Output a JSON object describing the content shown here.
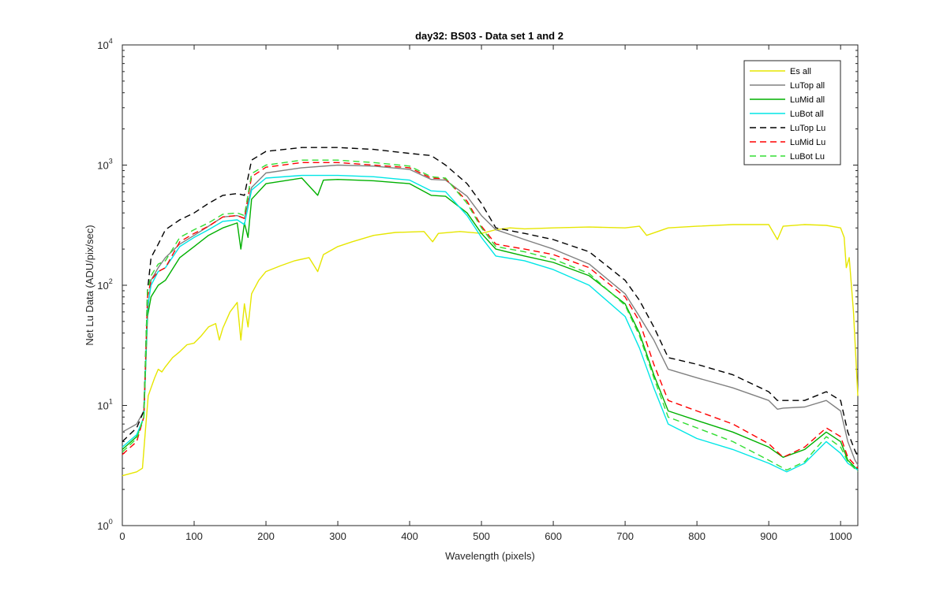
{
  "chart_data": {
    "type": "line",
    "title": "day32: BS03 - Data set 1 and 2",
    "xlabel": "Wavelength (pixels)",
    "ylabel": "Net Lu Data (ADU/pix/sec)",
    "xlim": [
      0,
      1024
    ],
    "ylim": [
      1,
      10000
    ],
    "yscale": "log",
    "grid": false,
    "legend_position": "top-right",
    "xticks": [
      0,
      100,
      200,
      300,
      400,
      500,
      600,
      700,
      800,
      900,
      1000
    ],
    "xtick_labels": [
      "0",
      "100",
      "200",
      "300",
      "400",
      "500",
      "600",
      "700",
      "800",
      "900",
      "1000"
    ],
    "yticks": [
      {
        "value": 1,
        "base": "10",
        "exp": "0"
      },
      {
        "value": 10,
        "base": "10",
        "exp": "1"
      },
      {
        "value": 100,
        "base": "10",
        "exp": "2"
      },
      {
        "value": 1000,
        "base": "10",
        "exp": "3"
      },
      {
        "value": 10000,
        "base": "10",
        "exp": "4"
      }
    ],
    "series": [
      {
        "name": "Es  all",
        "color": "#e6e600",
        "dash": "solid",
        "x": [
          0,
          20,
          28,
          32,
          36,
          40,
          45,
          50,
          55,
          60,
          70,
          80,
          90,
          100,
          110,
          120,
          130,
          135,
          140,
          150,
          160,
          165,
          170,
          175,
          180,
          190,
          200,
          220,
          240,
          260,
          272,
          280,
          300,
          320,
          350,
          380,
          420,
          432,
          440,
          470,
          500,
          520,
          540,
          560,
          600,
          650,
          700,
          720,
          730,
          760,
          800,
          850,
          900,
          912,
          920,
          950,
          980,
          1000,
          1005,
          1008,
          1012,
          1018,
          1024
        ],
        "values": [
          2.6,
          2.8,
          3.0,
          6.0,
          12,
          14,
          17,
          20,
          19,
          21,
          25,
          28,
          32,
          33,
          38,
          45,
          48,
          35,
          44,
          60,
          72,
          35,
          70,
          45,
          85,
          110,
          130,
          145,
          160,
          170,
          130,
          180,
          210,
          230,
          260,
          275,
          280,
          230,
          270,
          280,
          270,
          290,
          300,
          295,
          300,
          305,
          300,
          310,
          260,
          300,
          310,
          320,
          320,
          240,
          310,
          320,
          315,
          300,
          250,
          140,
          170,
          60,
          12
        ]
      },
      {
        "name": "LuTop  all",
        "color": "#808080",
        "dash": "solid",
        "x": [
          0,
          20,
          30,
          35,
          40,
          50,
          60,
          80,
          100,
          120,
          140,
          160,
          170,
          180,
          200,
          250,
          300,
          350,
          400,
          430,
          450,
          480,
          500,
          520,
          560,
          600,
          650,
          700,
          720,
          740,
          760,
          800,
          850,
          900,
          912,
          920,
          950,
          980,
          1000,
          1010,
          1020,
          1024
        ],
        "values": [
          6,
          7,
          9,
          60,
          110,
          140,
          170,
          220,
          260,
          310,
          370,
          380,
          360,
          650,
          860,
          950,
          1000,
          980,
          920,
          760,
          750,
          550,
          380,
          290,
          240,
          200,
          150,
          85,
          55,
          35,
          20,
          17,
          14,
          11,
          9.3,
          9.5,
          9.7,
          11,
          9,
          5,
          3.5,
          3.2
        ]
      },
      {
        "name": "LuMid  all",
        "color": "#00b000",
        "dash": "solid",
        "x": [
          0,
          20,
          30,
          35,
          40,
          50,
          60,
          80,
          100,
          120,
          140,
          160,
          165,
          170,
          175,
          180,
          200,
          250,
          272,
          280,
          300,
          350,
          400,
          430,
          450,
          480,
          500,
          520,
          560,
          600,
          650,
          700,
          720,
          740,
          760,
          800,
          850,
          900,
          920,
          950,
          980,
          1000,
          1010,
          1024
        ],
        "values": [
          4.3,
          5.5,
          8,
          55,
          80,
          100,
          110,
          170,
          210,
          260,
          300,
          330,
          200,
          330,
          250,
          520,
          700,
          780,
          560,
          750,
          760,
          740,
          700,
          560,
          550,
          400,
          270,
          200,
          175,
          155,
          120,
          70,
          40,
          18,
          9,
          7.5,
          6,
          4.5,
          3.7,
          4.3,
          6,
          5,
          3.5,
          2.9
        ]
      },
      {
        "name": "LuBot  all",
        "color": "#00e6e6",
        "dash": "solid",
        "x": [
          0,
          20,
          30,
          35,
          40,
          50,
          60,
          80,
          100,
          120,
          140,
          160,
          170,
          180,
          200,
          250,
          300,
          350,
          400,
          430,
          450,
          480,
          500,
          520,
          560,
          600,
          650,
          700,
          720,
          740,
          760,
          800,
          850,
          900,
          925,
          950,
          980,
          1000,
          1010,
          1024
        ],
        "values": [
          4.5,
          5.7,
          8,
          65,
          100,
          130,
          140,
          210,
          250,
          290,
          340,
          350,
          320,
          620,
          780,
          820,
          820,
          800,
          750,
          610,
          600,
          380,
          250,
          175,
          160,
          135,
          100,
          55,
          30,
          14,
          7,
          5.3,
          4.3,
          3.3,
          2.8,
          3.3,
          5,
          4,
          3.3,
          2.9
        ]
      },
      {
        "name": "LuTop  Lu",
        "color": "#000000",
        "dash": "8,5",
        "x": [
          0,
          20,
          30,
          35,
          40,
          50,
          60,
          80,
          100,
          120,
          140,
          160,
          170,
          180,
          200,
          250,
          300,
          350,
          400,
          430,
          450,
          480,
          500,
          520,
          560,
          600,
          650,
          700,
          720,
          740,
          760,
          800,
          850,
          900,
          912,
          920,
          950,
          980,
          1000,
          1010,
          1020,
          1024
        ],
        "values": [
          5,
          6.5,
          9,
          90,
          170,
          220,
          290,
          350,
          400,
          480,
          560,
          580,
          560,
          1100,
          1300,
          1400,
          1400,
          1350,
          1250,
          1200,
          1000,
          700,
          480,
          300,
          270,
          240,
          190,
          110,
          75,
          45,
          25,
          22,
          18,
          13,
          11,
          11,
          11,
          13,
          11,
          6,
          4.2,
          3.8
        ]
      },
      {
        "name": "LuMid  Lu",
        "color": "#ff0000",
        "dash": "8,5",
        "x": [
          0,
          20,
          30,
          35,
          40,
          50,
          60,
          80,
          100,
          120,
          140,
          160,
          170,
          180,
          200,
          250,
          300,
          350,
          400,
          430,
          450,
          480,
          500,
          520,
          560,
          600,
          650,
          700,
          720,
          740,
          760,
          800,
          850,
          900,
          920,
          950,
          980,
          1000,
          1010,
          1024
        ],
        "values": [
          3.9,
          5,
          8,
          80,
          110,
          130,
          140,
          230,
          270,
          310,
          370,
          380,
          360,
          800,
          960,
          1050,
          1050,
          1000,
          950,
          780,
          770,
          500,
          310,
          220,
          200,
          180,
          140,
          80,
          50,
          22,
          11,
          9,
          7,
          4.8,
          3.7,
          4.5,
          6.5,
          5.5,
          3.7,
          3
        ]
      },
      {
        "name": "LuBot  Lu",
        "color": "#33dd33",
        "dash": "8,5",
        "x": [
          0,
          20,
          30,
          35,
          40,
          50,
          60,
          80,
          100,
          120,
          140,
          160,
          170,
          180,
          200,
          250,
          300,
          350,
          400,
          430,
          450,
          480,
          500,
          520,
          560,
          600,
          650,
          700,
          720,
          740,
          760,
          800,
          850,
          900,
          925,
          950,
          980,
          1000,
          1010,
          1024
        ],
        "values": [
          4.1,
          5.3,
          8,
          90,
          120,
          150,
          160,
          250,
          290,
          330,
          390,
          400,
          380,
          850,
          1000,
          1100,
          1100,
          1050,
          980,
          800,
          780,
          480,
          300,
          210,
          190,
          165,
          125,
          68,
          38,
          17,
          8,
          6.5,
          5,
          3.5,
          2.9,
          3.4,
          5.5,
          4.5,
          3.4,
          2.8
        ]
      }
    ]
  }
}
